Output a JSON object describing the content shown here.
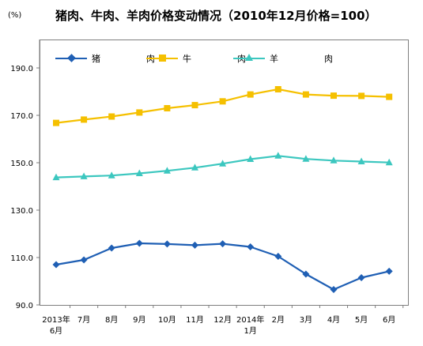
{
  "unit_label": "(%)",
  "title": "猪肉、牛肉、羊肉价格变动情况（2010年12月价格=100）",
  "chart_data": {
    "type": "line",
    "title": "猪肉、牛肉、羊肉价格变动情况（2010年12月价格=100）",
    "ylabel": "(%)",
    "ylim": [
      90,
      200
    ],
    "yticks": [
      "90.0",
      "110.0",
      "130.0",
      "150.0",
      "170.0",
      "190.0"
    ],
    "ytick_values": [
      90,
      110,
      130,
      150,
      170,
      190
    ],
    "categories": [
      "2013年6月",
      "7月",
      "8月",
      "9月",
      "10月",
      "11月",
      "12月",
      "2014年1月",
      "2月",
      "3月",
      "4月",
      "5月",
      "6月"
    ],
    "category_labels": [
      [
        "2013年",
        "6月"
      ],
      [
        "7月"
      ],
      [
        "8月"
      ],
      [
        "9月"
      ],
      [
        "10月"
      ],
      [
        "11月"
      ],
      [
        "12月"
      ],
      [
        "2014年",
        "1月"
      ],
      [
        "2月"
      ],
      [
        "3月"
      ],
      [
        "4月"
      ],
      [
        "5月"
      ],
      [
        "6月"
      ]
    ],
    "series": [
      {
        "name": "猪　　肉",
        "color": "#1f5fb4",
        "marker": "diamond",
        "values": [
          107.0,
          109.0,
          114.0,
          116.0,
          115.7,
          115.2,
          115.8,
          114.5,
          110.5,
          103.0,
          96.5,
          101.5,
          104.2
        ]
      },
      {
        "name": "牛　　肉",
        "color": "#f5c000",
        "marker": "square",
        "values": [
          166.8,
          168.2,
          169.5,
          171.2,
          173.0,
          174.3,
          175.9,
          178.8,
          181.0,
          178.8,
          178.3,
          178.2,
          177.8
        ]
      },
      {
        "name": "羊　　肉",
        "color": "#3cc7bf",
        "marker": "triangle",
        "values": [
          143.8,
          144.2,
          144.6,
          145.5,
          146.6,
          147.9,
          149.6,
          151.5,
          152.9,
          151.6,
          150.9,
          150.5,
          150.1
        ]
      }
    ],
    "grid": false,
    "legend_position": "top-left"
  }
}
